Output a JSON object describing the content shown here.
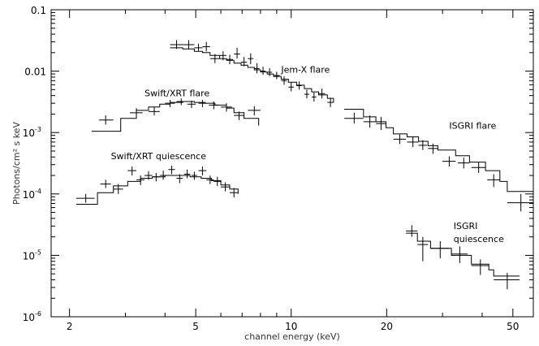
{
  "chart_data": {
    "type": "scatter",
    "xlabel": "channel energy (keV)",
    "ylabel": "Photons/cm² s keV",
    "x_scale": "log",
    "y_scale": "log",
    "xlim": [
      1.75,
      58
    ],
    "ylim": [
      1e-06,
      0.1
    ],
    "grid": false,
    "legend": "none",
    "x_ticks": [
      {
        "value": 2,
        "label": "2"
      },
      {
        "value": 5,
        "label": "5"
      },
      {
        "value": 10,
        "label": "10"
      },
      {
        "value": 20,
        "label": "20"
      },
      {
        "value": 50,
        "label": "50"
      }
    ],
    "y_ticks": [
      {
        "value": 1e-06,
        "label": "10",
        "exp": "-6"
      },
      {
        "value": 1e-05,
        "label": "10",
        "exp": "-5"
      },
      {
        "value": 0.0001,
        "label": "10",
        "exp": "-4"
      },
      {
        "value": 0.001,
        "label": "10",
        "exp": "-3"
      },
      {
        "value": 0.01,
        "label": "0.01",
        "exp": ""
      },
      {
        "value": 0.1,
        "label": "0.1",
        "exp": ""
      }
    ],
    "annotations": [
      {
        "text": "Jem-X flare",
        "x": 9.3,
        "y": 0.0095
      },
      {
        "text": "Swift/XRT flare",
        "x": 3.45,
        "y": 0.0039
      },
      {
        "text": "ISGRI flare",
        "x": 31.5,
        "y": 0.00115
      },
      {
        "text": "Swift/XRT quiescence",
        "x": 2.7,
        "y": 0.00037
      },
      {
        "text": "ISGRI",
        "x": 32.5,
        "y": 2.7e-05
      },
      {
        "text": "quiescence",
        "x": 32.5,
        "y": 1.65e-05
      }
    ],
    "series": [
      {
        "points": [
          {
            "x": 2.6,
            "y": 0.0016,
            "xlo": 2.48,
            "xhi": 2.75,
            "ylo": 0.00135,
            "yhi": 0.0019
          },
          {
            "x": 3.25,
            "y": 0.0021,
            "xlo": 3.1,
            "xhi": 3.4,
            "ylo": 0.0018,
            "yhi": 0.0025
          },
          {
            "x": 3.7,
            "y": 0.0022,
            "xlo": 3.55,
            "xhi": 3.85,
            "ylo": 0.0019,
            "yhi": 0.0026
          },
          {
            "x": 4.15,
            "y": 0.003,
            "xlo": 4.0,
            "xhi": 4.3,
            "ylo": 0.0026,
            "yhi": 0.0034
          },
          {
            "x": 4.5,
            "y": 0.0032,
            "xlo": 4.35,
            "xhi": 4.65,
            "ylo": 0.0028,
            "yhi": 0.0036
          },
          {
            "x": 4.85,
            "y": 0.0029,
            "xlo": 4.7,
            "xhi": 5.0,
            "ylo": 0.0025,
            "yhi": 0.0033
          },
          {
            "x": 5.25,
            "y": 0.003,
            "xlo": 5.1,
            "xhi": 5.4,
            "ylo": 0.0026,
            "yhi": 0.0034
          },
          {
            "x": 5.7,
            "y": 0.0028,
            "xlo": 5.5,
            "xhi": 5.9,
            "ylo": 0.0024,
            "yhi": 0.0032
          },
          {
            "x": 6.25,
            "y": 0.0026,
            "xlo": 6.0,
            "xhi": 6.5,
            "ylo": 0.0022,
            "yhi": 0.003
          },
          {
            "x": 6.85,
            "y": 0.0019,
            "xlo": 6.6,
            "xhi": 7.1,
            "ylo": 0.0016,
            "yhi": 0.0022
          },
          {
            "x": 7.65,
            "y": 0.0023,
            "xlo": 7.3,
            "xhi": 8.0,
            "ylo": 0.0019,
            "yhi": 0.0027
          }
        ],
        "model": [
          [
            2.35,
            0.00105
          ],
          [
            2.9,
            0.0017
          ],
          [
            3.25,
            0.0023
          ],
          [
            3.55,
            0.0026
          ],
          [
            3.85,
            0.0029
          ],
          [
            4.15,
            0.0031
          ],
          [
            4.55,
            0.0032
          ],
          [
            4.95,
            0.0031
          ],
          [
            5.35,
            0.003
          ],
          [
            5.75,
            0.0028
          ],
          [
            6.25,
            0.0025
          ],
          [
            6.6,
            0.0021
          ],
          [
            7.1,
            0.0017
          ],
          [
            7.9,
            0.0013
          ]
        ]
      },
      {
        "points": [
          {
            "x": 2.25,
            "y": 8.5e-05,
            "xlo": 2.1,
            "xhi": 2.4,
            "ylo": 7.2e-05,
            "yhi": 0.0001
          },
          {
            "x": 2.6,
            "y": 0.000145,
            "xlo": 2.5,
            "xhi": 2.7,
            "ylo": 0.000125,
            "yhi": 0.00017
          },
          {
            "x": 2.85,
            "y": 0.00012,
            "xlo": 2.75,
            "xhi": 2.95,
            "ylo": 0.0001,
            "yhi": 0.000145
          },
          {
            "x": 3.15,
            "y": 0.00024,
            "xlo": 3.05,
            "xhi": 3.25,
            "ylo": 0.0002,
            "yhi": 0.00028
          },
          {
            "x": 3.35,
            "y": 0.00017,
            "xlo": 3.25,
            "xhi": 3.45,
            "ylo": 0.00014,
            "yhi": 0.0002
          },
          {
            "x": 3.55,
            "y": 0.0002,
            "xlo": 3.45,
            "xhi": 3.65,
            "ylo": 0.00017,
            "yhi": 0.000235
          },
          {
            "x": 3.75,
            "y": 0.00019,
            "xlo": 3.65,
            "xhi": 3.85,
            "ylo": 0.00016,
            "yhi": 0.00022
          },
          {
            "x": 3.95,
            "y": 0.0002,
            "xlo": 3.85,
            "xhi": 4.05,
            "ylo": 0.00017,
            "yhi": 0.00024
          },
          {
            "x": 4.2,
            "y": 0.00025,
            "xlo": 4.1,
            "xhi": 4.3,
            "ylo": 0.00021,
            "yhi": 0.00029
          },
          {
            "x": 4.45,
            "y": 0.00018,
            "xlo": 4.35,
            "xhi": 4.55,
            "ylo": 0.00015,
            "yhi": 0.00021
          },
          {
            "x": 4.7,
            "y": 0.00021,
            "xlo": 4.6,
            "xhi": 4.8,
            "ylo": 0.00018,
            "yhi": 0.00025
          },
          {
            "x": 4.95,
            "y": 0.0002,
            "xlo": 4.85,
            "xhi": 5.05,
            "ylo": 0.00017,
            "yhi": 0.00023
          },
          {
            "x": 5.25,
            "y": 0.00024,
            "xlo": 5.1,
            "xhi": 5.4,
            "ylo": 0.0002,
            "yhi": 0.00028
          },
          {
            "x": 5.55,
            "y": 0.00017,
            "xlo": 5.4,
            "xhi": 5.7,
            "ylo": 0.000145,
            "yhi": 0.0002
          },
          {
            "x": 5.85,
            "y": 0.00016,
            "xlo": 5.7,
            "xhi": 6.0,
            "ylo": 0.000135,
            "yhi": 0.00019
          },
          {
            "x": 6.2,
            "y": 0.00013,
            "xlo": 6.0,
            "xhi": 6.4,
            "ylo": 0.00011,
            "yhi": 0.000155
          },
          {
            "x": 6.6,
            "y": 0.000105,
            "xlo": 6.4,
            "xhi": 6.8,
            "ylo": 8.8e-05,
            "yhi": 0.000125
          }
        ],
        "model": [
          [
            2.1,
            6.8e-05
          ],
          [
            2.45,
            0.000105
          ],
          [
            2.75,
            0.000135
          ],
          [
            3.05,
            0.00016
          ],
          [
            3.35,
            0.00018
          ],
          [
            3.65,
            0.00019
          ],
          [
            4.0,
            0.0002
          ],
          [
            4.4,
            0.0002
          ],
          [
            4.8,
            0.00019
          ],
          [
            5.2,
            0.00018
          ],
          [
            5.6,
            0.000165
          ],
          [
            6.0,
            0.00014
          ],
          [
            6.4,
            0.00012
          ],
          [
            6.8,
            0.0001
          ]
        ]
      },
      {
        "points": [
          {
            "x": 4.35,
            "y": 0.027,
            "xlo": 4.15,
            "xhi": 4.55,
            "ylo": 0.023,
            "yhi": 0.032
          },
          {
            "x": 4.75,
            "y": 0.027,
            "xlo": 4.55,
            "xhi": 4.95,
            "ylo": 0.023,
            "yhi": 0.032
          },
          {
            "x": 5.1,
            "y": 0.024,
            "xlo": 4.95,
            "xhi": 5.25,
            "ylo": 0.021,
            "yhi": 0.028
          },
          {
            "x": 5.4,
            "y": 0.025,
            "xlo": 5.25,
            "xhi": 5.55,
            "ylo": 0.021,
            "yhi": 0.03
          },
          {
            "x": 5.75,
            "y": 0.016,
            "xlo": 5.55,
            "xhi": 5.95,
            "ylo": 0.0135,
            "yhi": 0.019
          },
          {
            "x": 6.1,
            "y": 0.018,
            "xlo": 5.95,
            "xhi": 6.25,
            "ylo": 0.015,
            "yhi": 0.021
          },
          {
            "x": 6.4,
            "y": 0.0155,
            "xlo": 6.25,
            "xhi": 6.55,
            "ylo": 0.013,
            "yhi": 0.0185
          },
          {
            "x": 6.75,
            "y": 0.019,
            "xlo": 6.6,
            "xhi": 6.9,
            "ylo": 0.016,
            "yhi": 0.024
          },
          {
            "x": 7.1,
            "y": 0.014,
            "xlo": 6.95,
            "xhi": 7.25,
            "ylo": 0.012,
            "yhi": 0.017
          },
          {
            "x": 7.45,
            "y": 0.016,
            "xlo": 7.3,
            "xhi": 7.6,
            "ylo": 0.013,
            "yhi": 0.0195
          },
          {
            "x": 7.8,
            "y": 0.011,
            "xlo": 7.65,
            "xhi": 7.95,
            "ylo": 0.0092,
            "yhi": 0.0135
          },
          {
            "x": 8.15,
            "y": 0.01,
            "xlo": 8.0,
            "xhi": 8.3,
            "ylo": 0.0087,
            "yhi": 0.0118
          },
          {
            "x": 8.55,
            "y": 0.0096,
            "xlo": 8.4,
            "xhi": 8.7,
            "ylo": 0.0083,
            "yhi": 0.0112
          },
          {
            "x": 9.0,
            "y": 0.0085,
            "xlo": 8.8,
            "xhi": 9.2,
            "ylo": 0.0074,
            "yhi": 0.0098
          },
          {
            "x": 9.5,
            "y": 0.007,
            "xlo": 9.3,
            "xhi": 9.7,
            "ylo": 0.006,
            "yhi": 0.0082
          },
          {
            "x": 10.0,
            "y": 0.0055,
            "xlo": 9.8,
            "xhi": 10.2,
            "ylo": 0.0047,
            "yhi": 0.0065
          },
          {
            "x": 10.6,
            "y": 0.0058,
            "xlo": 10.4,
            "xhi": 10.8,
            "ylo": 0.005,
            "yhi": 0.0068
          },
          {
            "x": 11.2,
            "y": 0.0042,
            "xlo": 11.0,
            "xhi": 11.4,
            "ylo": 0.0036,
            "yhi": 0.005
          },
          {
            "x": 11.8,
            "y": 0.0038,
            "xlo": 11.6,
            "xhi": 12.0,
            "ylo": 0.0032,
            "yhi": 0.0045
          },
          {
            "x": 12.5,
            "y": 0.0043,
            "xlo": 12.2,
            "xhi": 12.8,
            "ylo": 0.0036,
            "yhi": 0.0052
          },
          {
            "x": 13.3,
            "y": 0.0031,
            "xlo": 13.0,
            "xhi": 13.6,
            "ylo": 0.0026,
            "yhi": 0.0037
          }
        ],
        "model": [
          [
            4.15,
            0.024
          ],
          [
            4.55,
            0.023
          ],
          [
            4.95,
            0.021
          ],
          [
            5.25,
            0.02
          ],
          [
            5.55,
            0.018
          ],
          [
            5.95,
            0.016
          ],
          [
            6.25,
            0.015
          ],
          [
            6.6,
            0.0135
          ],
          [
            6.95,
            0.0125
          ],
          [
            7.3,
            0.0115
          ],
          [
            7.65,
            0.0105
          ],
          [
            8.0,
            0.0097
          ],
          [
            8.4,
            0.009
          ],
          [
            8.8,
            0.0082
          ],
          [
            9.3,
            0.0074
          ],
          [
            9.8,
            0.0066
          ],
          [
            10.4,
            0.0059
          ],
          [
            11.0,
            0.0052
          ],
          [
            11.6,
            0.0046
          ],
          [
            12.2,
            0.0041
          ],
          [
            13.0,
            0.0036
          ],
          [
            13.6,
            0.0031
          ]
        ]
      },
      {
        "points": [
          {
            "x": 15.8,
            "y": 0.0017,
            "xlo": 14.7,
            "xhi": 16.9,
            "ylo": 0.0014,
            "yhi": 0.0021
          },
          {
            "x": 17.7,
            "y": 0.0015,
            "xlo": 16.9,
            "xhi": 18.5,
            "ylo": 0.0012,
            "yhi": 0.0019
          },
          {
            "x": 19.2,
            "y": 0.0014,
            "xlo": 18.5,
            "xhi": 19.9,
            "ylo": 0.0011,
            "yhi": 0.0018
          },
          {
            "x": 22.0,
            "y": 0.00078,
            "xlo": 21.0,
            "xhi": 23.0,
            "ylo": 0.00065,
            "yhi": 0.00093
          },
          {
            "x": 24.2,
            "y": 0.0007,
            "xlo": 23.2,
            "xhi": 25.2,
            "ylo": 0.00058,
            "yhi": 0.00084
          },
          {
            "x": 26.0,
            "y": 0.00062,
            "xlo": 25.2,
            "xhi": 26.8,
            "ylo": 0.00052,
            "yhi": 0.00075
          },
          {
            "x": 28.0,
            "y": 0.00055,
            "xlo": 27.0,
            "xhi": 29.0,
            "ylo": 0.00045,
            "yhi": 0.00066
          },
          {
            "x": 31.5,
            "y": 0.00034,
            "xlo": 30.0,
            "xhi": 33.0,
            "ylo": 0.00028,
            "yhi": 0.00041
          },
          {
            "x": 35.0,
            "y": 0.00032,
            "xlo": 33.5,
            "xhi": 36.5,
            "ylo": 0.00026,
            "yhi": 0.00039
          },
          {
            "x": 39.0,
            "y": 0.00027,
            "xlo": 37.0,
            "xhi": 41.0,
            "ylo": 0.00022,
            "yhi": 0.00033
          },
          {
            "x": 43.5,
            "y": 0.00017,
            "xlo": 41.5,
            "xhi": 45.5,
            "ylo": 0.00013,
            "yhi": 0.00021
          },
          {
            "x": 53.0,
            "y": 7.2e-05,
            "xlo": 48.0,
            "xhi": 58.0,
            "ylo": 5.2e-05,
            "yhi": 0.0001
          }
        ],
        "model": [
          [
            14.7,
            0.0024
          ],
          [
            16.9,
            0.0018
          ],
          [
            18.5,
            0.0015
          ],
          [
            19.9,
            0.0012
          ],
          [
            21.0,
            0.00095
          ],
          [
            23.2,
            0.00085
          ],
          [
            25.2,
            0.00072
          ],
          [
            27.0,
            0.00061
          ],
          [
            29.0,
            0.00052
          ],
          [
            33.0,
            0.00042
          ],
          [
            36.5,
            0.00033
          ],
          [
            41.0,
            0.00024
          ],
          [
            45.5,
            0.00016
          ],
          [
            48.0,
            0.00011
          ],
          [
            58.0,
            0.0001
          ]
        ]
      },
      {
        "points": [
          {
            "x": 24.0,
            "y": 2.5e-05,
            "xlo": 23.0,
            "xhi": 25.0,
            "ylo": 2e-05,
            "yhi": 3.1e-05
          },
          {
            "x": 26.0,
            "y": 1.5e-05,
            "xlo": 25.0,
            "xhi": 27.0,
            "ylo": 8e-06,
            "yhi": 2e-05
          },
          {
            "x": 29.5,
            "y": 1.3e-05,
            "xlo": 27.5,
            "xhi": 31.5,
            "ylo": 9e-06,
            "yhi": 1.7e-05
          },
          {
            "x": 34.0,
            "y": 1.05e-05,
            "xlo": 32.0,
            "xhi": 36.0,
            "ylo": 7.5e-06,
            "yhi": 1.4e-05
          },
          {
            "x": 39.5,
            "y": 6.8e-06,
            "xlo": 37.0,
            "xhi": 42.0,
            "ylo": 4.8e-06,
            "yhi": 8.6e-06
          },
          {
            "x": 48.0,
            "y": 4e-06,
            "xlo": 43.5,
            "xhi": 52.5,
            "ylo": 2.8e-06,
            "yhi": 5.2e-06
          }
        ],
        "model": [
          [
            23.0,
            2.3e-05
          ],
          [
            25.0,
            1.7e-05
          ],
          [
            27.5,
            1.3e-05
          ],
          [
            32.0,
            1e-05
          ],
          [
            37.0,
            7.2e-06
          ],
          [
            42.0,
            5.8e-06
          ],
          [
            43.5,
            4.6e-06
          ],
          [
            52.5,
            4.6e-06
          ]
        ]
      }
    ]
  }
}
